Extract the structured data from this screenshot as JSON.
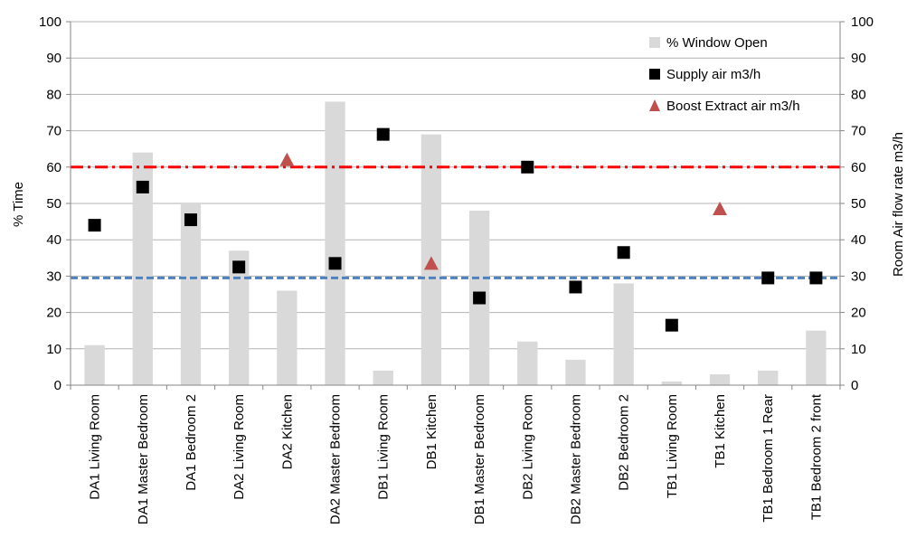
{
  "chart_data": {
    "type": "bar",
    "categories": [
      "DA1 Living Room",
      "DA1 Master Bedroom",
      "DA1 Bedroom 2",
      "DA2 Living Room",
      "DA2 Kitchen",
      "DA2 Master Bedroom",
      "DB1 Living Room",
      "DB1 Kitchen",
      "DB1 Master Bedroom",
      "DB2 Living Room",
      "DB2 Master Bedroom",
      "DB2 Bedroom 2",
      "TB1 Living Room",
      "TB1 Kitchen",
      "TB1 Bedroom 1 Rear",
      "TB1 Bedroom 2 front"
    ],
    "series": [
      {
        "name": "% Window Open",
        "kind": "bar",
        "axis": "left",
        "color": "#d9d9d9",
        "values": [
          11,
          64,
          50,
          37,
          26,
          78,
          4,
          69,
          48,
          12,
          7,
          28,
          1,
          3,
          4,
          15
        ]
      },
      {
        "name": "Supply air m3/h",
        "kind": "square-marker",
        "axis": "right",
        "color": "#000000",
        "values": [
          44,
          54.5,
          45.5,
          32.5,
          null,
          33.5,
          69,
          null,
          24,
          60,
          27,
          36.5,
          16.5,
          null,
          29.5,
          29.5
        ]
      },
      {
        "name": "Boost Extract air m3/h",
        "kind": "triangle-marker",
        "axis": "right",
        "color": "#c0504d",
        "values": [
          null,
          null,
          null,
          null,
          62,
          null,
          null,
          33.5,
          null,
          null,
          null,
          null,
          null,
          48.5,
          null,
          null
        ]
      }
    ],
    "reference_lines": [
      {
        "value": 60,
        "axis": "right",
        "color": "#ff0000",
        "style": "dash-dot"
      },
      {
        "value": 29.5,
        "axis": "right",
        "color": "#4f81bd",
        "style": "dashed"
      }
    ],
    "ylabel": "% Time",
    "y2label": "Room Air flow rate m3/h",
    "xlabel": "",
    "ylim": [
      0,
      100
    ],
    "y2lim": [
      0,
      100
    ],
    "yticks": [
      0,
      10,
      20,
      30,
      40,
      50,
      60,
      70,
      80,
      90,
      100
    ],
    "grid": true,
    "legend_position": "top-right"
  }
}
